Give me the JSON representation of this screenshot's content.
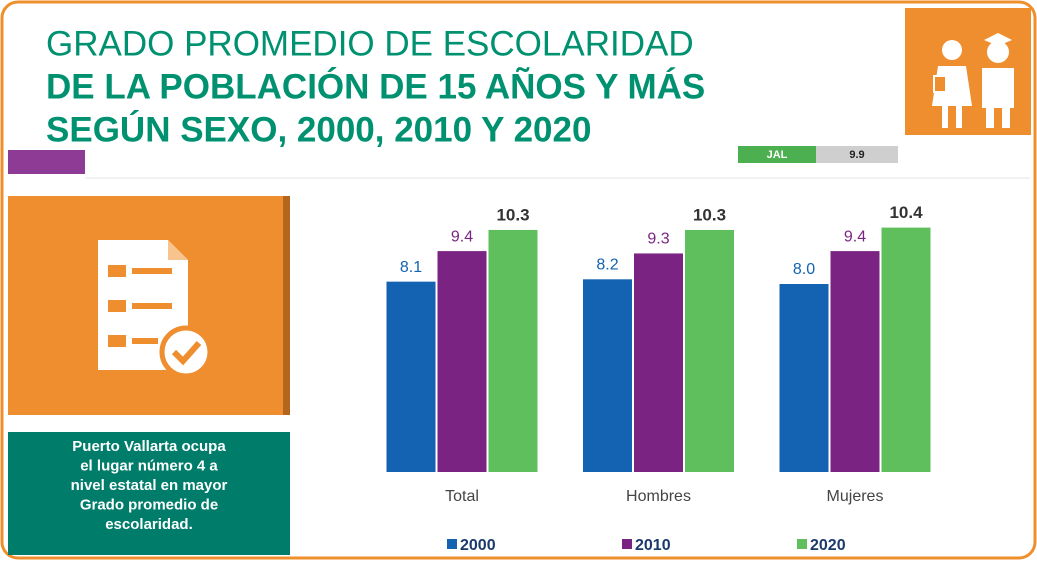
{
  "chart_data": {
    "type": "bar",
    "title": [
      "GRADO PROMEDIO DE ESCOLARIDAD",
      "DE LA POBLACIÓN DE 15 AÑOS Y MÁS",
      "SEGÚN SEXO, 2000, 2010 Y 2020"
    ],
    "categories": [
      "Total",
      "Hombres",
      "Mujeres"
    ],
    "series": [
      {
        "name": "2000",
        "color": "#1363b2",
        "values": [
          8.1,
          8.2,
          8.0
        ]
      },
      {
        "name": "2010",
        "color": "#7b2382",
        "values": [
          9.4,
          9.3,
          9.4
        ]
      },
      {
        "name": "2020",
        "color": "#5fbf5c",
        "values": [
          10.3,
          10.3,
          10.4
        ]
      }
    ],
    "ylim": [
      0,
      11
    ],
    "value_labels": [
      [
        "8.1",
        "8.2",
        "8.0"
      ],
      [
        "9.4",
        "9.3",
        "9.4"
      ],
      [
        "10.3",
        "10.3",
        "10.4"
      ]
    ]
  },
  "badge": {
    "label": "JAL",
    "value": 9.9
  },
  "note": [
    "Puerto Vallarta ocupa",
    "el lugar número 4 a",
    "nivel estatal en mayor",
    "Grado promedio de",
    "escolaridad."
  ]
}
